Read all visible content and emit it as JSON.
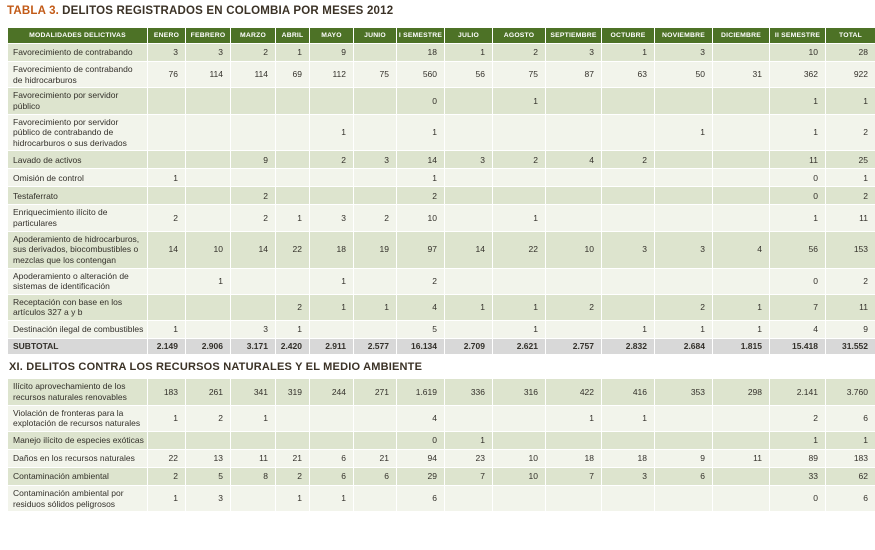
{
  "title": {
    "prefix": "TABLA 3.",
    "text": "DELITOS REGISTRADOS EN COLOMBIA POR MESES 2012"
  },
  "colors": {
    "header_bg": "#4d7226",
    "row_green": "#dde4ce",
    "row_light": "#f2f4eb",
    "subtotal_bg": "#d8d8d8",
    "title_prefix": "#c25a17",
    "text": "#33302a"
  },
  "table": {
    "columns": [
      "MODALIDADES DELICTIVAS",
      "ENERO",
      "FEBRERO",
      "MARZO",
      "ABRIL",
      "MAYO",
      "JUNIO",
      "I SEMESTRE",
      "JULIO",
      "AGOSTO",
      "SEPTIEMBRE",
      "OCTUBRE",
      "NOVIEMBRE",
      "DICIEMBRE",
      "II SEMESTRE",
      "TOTAL"
    ],
    "rows": [
      {
        "type": "data",
        "label": "Favorecimiento de contrabando",
        "values": [
          "3",
          "3",
          "2",
          "1",
          "9",
          "",
          "18",
          "1",
          "2",
          "3",
          "1",
          "3",
          "",
          "10",
          "28"
        ]
      },
      {
        "type": "data",
        "label": "Favorecimiento de contrabando de hidrocarburos",
        "values": [
          "76",
          "114",
          "114",
          "69",
          "112",
          "75",
          "560",
          "56",
          "75",
          "87",
          "63",
          "50",
          "31",
          "362",
          "922"
        ]
      },
      {
        "type": "data",
        "label": "Favorecimiento por servidor público",
        "values": [
          "",
          "",
          "",
          "",
          "",
          "",
          "0",
          "",
          "1",
          "",
          "",
          "",
          "",
          "1",
          "1"
        ]
      },
      {
        "type": "data",
        "label": "Favorecimiento por servidor público de contrabando de hidrocarburos o sus derivados",
        "values": [
          "",
          "",
          "",
          "",
          "1",
          "",
          "1",
          "",
          "",
          "",
          "",
          "1",
          "",
          "1",
          "2"
        ]
      },
      {
        "type": "data",
        "label": "Lavado de activos",
        "values": [
          "",
          "",
          "9",
          "",
          "2",
          "3",
          "14",
          "3",
          "2",
          "4",
          "2",
          "",
          "",
          "11",
          "25"
        ]
      },
      {
        "type": "data",
        "label": "Omisión de control",
        "values": [
          "1",
          "",
          "",
          "",
          "",
          "",
          "1",
          "",
          "",
          "",
          "",
          "",
          "",
          "0",
          "1"
        ]
      },
      {
        "type": "data",
        "label": "Testaferrato",
        "values": [
          "",
          "",
          "2",
          "",
          "",
          "",
          "2",
          "",
          "",
          "",
          "",
          "",
          "",
          "0",
          "2"
        ]
      },
      {
        "type": "data",
        "label": "Enriquecimiento ilícito de particulares",
        "values": [
          "2",
          "",
          "2",
          "1",
          "3",
          "2",
          "10",
          "",
          "1",
          "",
          "",
          "",
          "",
          "1",
          "11"
        ]
      },
      {
        "type": "data",
        "label": "Apoderamiento de hidrocarburos, sus derivados, biocombustibles o mezclas que los contengan",
        "values": [
          "14",
          "10",
          "14",
          "22",
          "18",
          "19",
          "97",
          "14",
          "22",
          "10",
          "3",
          "3",
          "4",
          "56",
          "153"
        ]
      },
      {
        "type": "data",
        "label": "Apoderamiento o alteración de sistemas de identificación",
        "values": [
          "",
          "1",
          "",
          "",
          "1",
          "",
          "2",
          "",
          "",
          "",
          "",
          "",
          "",
          "0",
          "2"
        ]
      },
      {
        "type": "data",
        "label": "Receptación con base en los artículos 327 a y b",
        "values": [
          "",
          "",
          "",
          "2",
          "1",
          "1",
          "4",
          "1",
          "1",
          "2",
          "",
          "2",
          "1",
          "7",
          "11"
        ]
      },
      {
        "type": "data",
        "label": "Destinación ilegal de combustibles",
        "values": [
          "1",
          "",
          "3",
          "1",
          "",
          "",
          "5",
          "",
          "1",
          "",
          "1",
          "1",
          "1",
          "4",
          "9"
        ]
      },
      {
        "type": "subtotal",
        "label": "SUBTOTAL",
        "values": [
          "2.149",
          "2.906",
          "3.171",
          "2.420",
          "2.911",
          "2.577",
          "16.134",
          "2.709",
          "2.621",
          "2.757",
          "2.832",
          "2.684",
          "1.815",
          "15.418",
          "31.552"
        ]
      },
      {
        "type": "section",
        "label": "XI. DELITOS CONTRA LOS RECURSOS NATURALES Y EL MEDIO AMBIENTE"
      },
      {
        "type": "data",
        "label": "Ilícito aprovechamiento de los recursos naturales renovables",
        "values": [
          "183",
          "261",
          "341",
          "319",
          "244",
          "271",
          "1.619",
          "336",
          "316",
          "422",
          "416",
          "353",
          "298",
          "2.141",
          "3.760"
        ]
      },
      {
        "type": "data",
        "label": "Violación de fronteras para la explotación de recursos naturales",
        "values": [
          "1",
          "2",
          "1",
          "",
          "",
          "",
          "4",
          "",
          "",
          "1",
          "1",
          "",
          "",
          "2",
          "6"
        ]
      },
      {
        "type": "data",
        "label": "Manejo ilícito de especies exóticas",
        "values": [
          "",
          "",
          "",
          "",
          "",
          "",
          "0",
          "1",
          "",
          "",
          "",
          "",
          "",
          "1",
          "1"
        ]
      },
      {
        "type": "data",
        "label": "Daños en los recursos naturales",
        "values": [
          "22",
          "13",
          "11",
          "21",
          "6",
          "21",
          "94",
          "23",
          "10",
          "18",
          "18",
          "9",
          "11",
          "89",
          "183"
        ]
      },
      {
        "type": "data",
        "label": "Contaminación ambiental",
        "values": [
          "2",
          "5",
          "8",
          "2",
          "6",
          "6",
          "29",
          "7",
          "10",
          "7",
          "3",
          "6",
          "",
          "33",
          "62"
        ]
      },
      {
        "type": "data",
        "label": "Contaminación ambiental por residuos sólidos peligrosos",
        "values": [
          "1",
          "3",
          "",
          "1",
          "1",
          "",
          "6",
          "",
          "",
          "",
          "",
          "",
          "",
          "0",
          "6"
        ]
      }
    ]
  }
}
